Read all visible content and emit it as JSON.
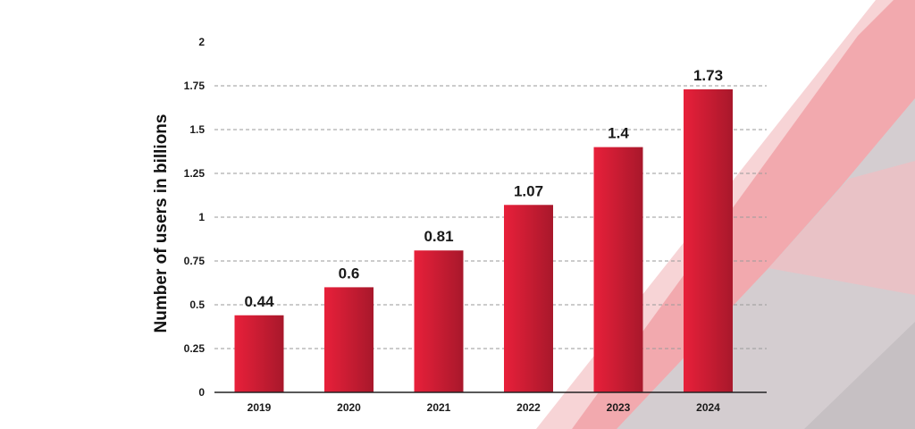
{
  "chart_data": {
    "type": "bar",
    "categories": [
      "2019",
      "2020",
      "2021",
      "2022",
      "2023",
      "2024"
    ],
    "values": [
      0.44,
      0.6,
      0.81,
      1.07,
      1.4,
      1.73
    ],
    "data_labels": [
      "0.44",
      "0.6",
      "0.81",
      "1.07",
      "1.4",
      "1.73"
    ],
    "ylabel": "Number of users in billions",
    "ylim": [
      0,
      2
    ],
    "yticks": [
      0,
      0.25,
      0.5,
      0.75,
      1,
      1.25,
      1.5,
      1.75,
      2
    ],
    "ytick_labels": [
      "0",
      "0.25",
      "0.5",
      "0.75",
      "1",
      "1.25",
      "1.5",
      "1.75",
      "2"
    ],
    "grid": "horizontal dashed",
    "legend": "none"
  },
  "colors": {
    "bar_light": "#e8203a",
    "bar_dark": "#a8182b",
    "grid": "#9a9a9a",
    "axis": "#222222",
    "deco_red": "#f2b5b8",
    "deco_gray": "#c9c4c6"
  }
}
